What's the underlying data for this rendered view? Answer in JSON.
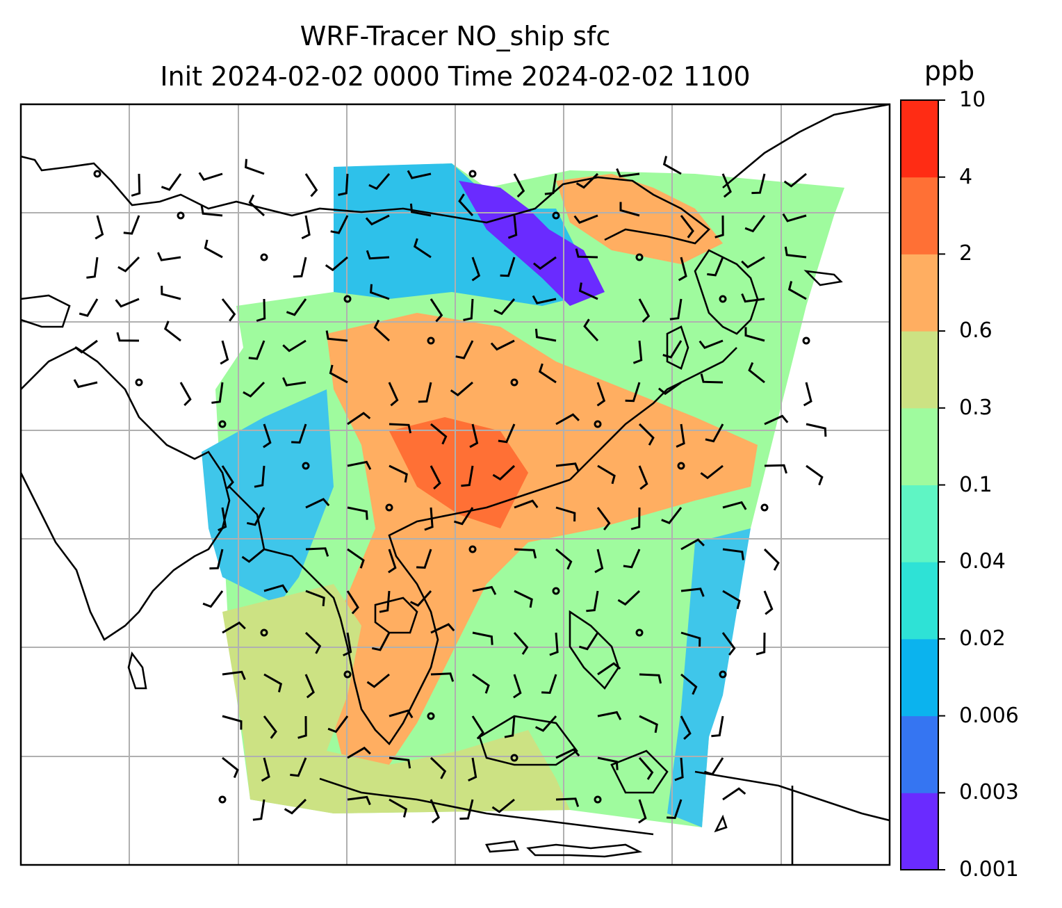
{
  "title_line1": "WRF-Tracer NO_ship sfc",
  "title_line2": "Init 2024-02-02 0000 Time 2024-02-02 1100",
  "colorbar": {
    "unit_label": "ppb",
    "levels": [
      "0.001",
      "0.003",
      "0.006",
      "0.02",
      "0.04",
      "0.1",
      "0.3",
      "0.6",
      "2",
      "4",
      "10"
    ],
    "colors": [
      "#6a2bff",
      "#3575f2",
      "#0bb3ee",
      "#2ee2d6",
      "#5ff5c4",
      "#9ffb9e",
      "#cce283",
      "#ffae61",
      "#ff7035",
      "#ff2c14"
    ]
  },
  "map": {
    "field": "NO_ship surface concentration",
    "grid": true,
    "overlay": "wind barbs",
    "coastlines": true
  }
}
